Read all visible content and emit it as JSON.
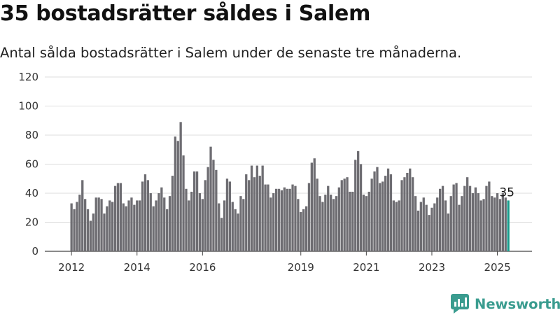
{
  "title": "35 bostadsrätter såldes i Salem",
  "subtitle": "Antal sålda bostadsrätter i Salem under de senaste tre månaderna.",
  "brand": {
    "name": "Newsworthy"
  },
  "colors": {
    "bar": "#6e6d72",
    "highlight": "#1a9c8c",
    "grid": "#dddddd",
    "brand": "#3a9c8f"
  },
  "chart_data": {
    "type": "bar",
    "title": "35 bostadsrätter såldes i Salem",
    "subtitle": "Antal sålda bostadsrätter i Salem under de senaste tre månaderna.",
    "ylim": [
      0,
      120
    ],
    "yticks": [
      0,
      20,
      40,
      60,
      80,
      100,
      120
    ],
    "grid": true,
    "first_period": "2012-01",
    "x_ticks": [
      "2012",
      "2014",
      "2016",
      "2019",
      "2021",
      "2023",
      "2025"
    ],
    "values": [
      33,
      29,
      34,
      39,
      49,
      36,
      29,
      21,
      26,
      37,
      37,
      36,
      26,
      31,
      35,
      34,
      45,
      47,
      47,
      33,
      31,
      35,
      37,
      32,
      35,
      35,
      48,
      53,
      49,
      40,
      31,
      35,
      40,
      44,
      37,
      29,
      38,
      52,
      79,
      76,
      89,
      66,
      43,
      35,
      41,
      55,
      55,
      40,
      36,
      49,
      58,
      72,
      63,
      56,
      33,
      23,
      35,
      50,
      48,
      34,
      29,
      26,
      38,
      36,
      53,
      49,
      59,
      51,
      59,
      52,
      59,
      46,
      46,
      37,
      40,
      43,
      43,
      42,
      44,
      43,
      43,
      46,
      45,
      36,
      27,
      29,
      31,
      47,
      61,
      64,
      50,
      38,
      34,
      39,
      45,
      39,
      36,
      38,
      44,
      49,
      50,
      51,
      41,
      41,
      63,
      69,
      60,
      39,
      38,
      41,
      50,
      55,
      58,
      47,
      48,
      52,
      57,
      53,
      35,
      34,
      35,
      49,
      51,
      54,
      57,
      51,
      38,
      28,
      34,
      37,
      32,
      25,
      30,
      33,
      37,
      43,
      45,
      35,
      26,
      38,
      46,
      47,
      32,
      38,
      45,
      51,
      45,
      40,
      44,
      40,
      35,
      36,
      45,
      48,
      38,
      37,
      40,
      36,
      40,
      37,
      35
    ],
    "last_value_label": "35"
  }
}
